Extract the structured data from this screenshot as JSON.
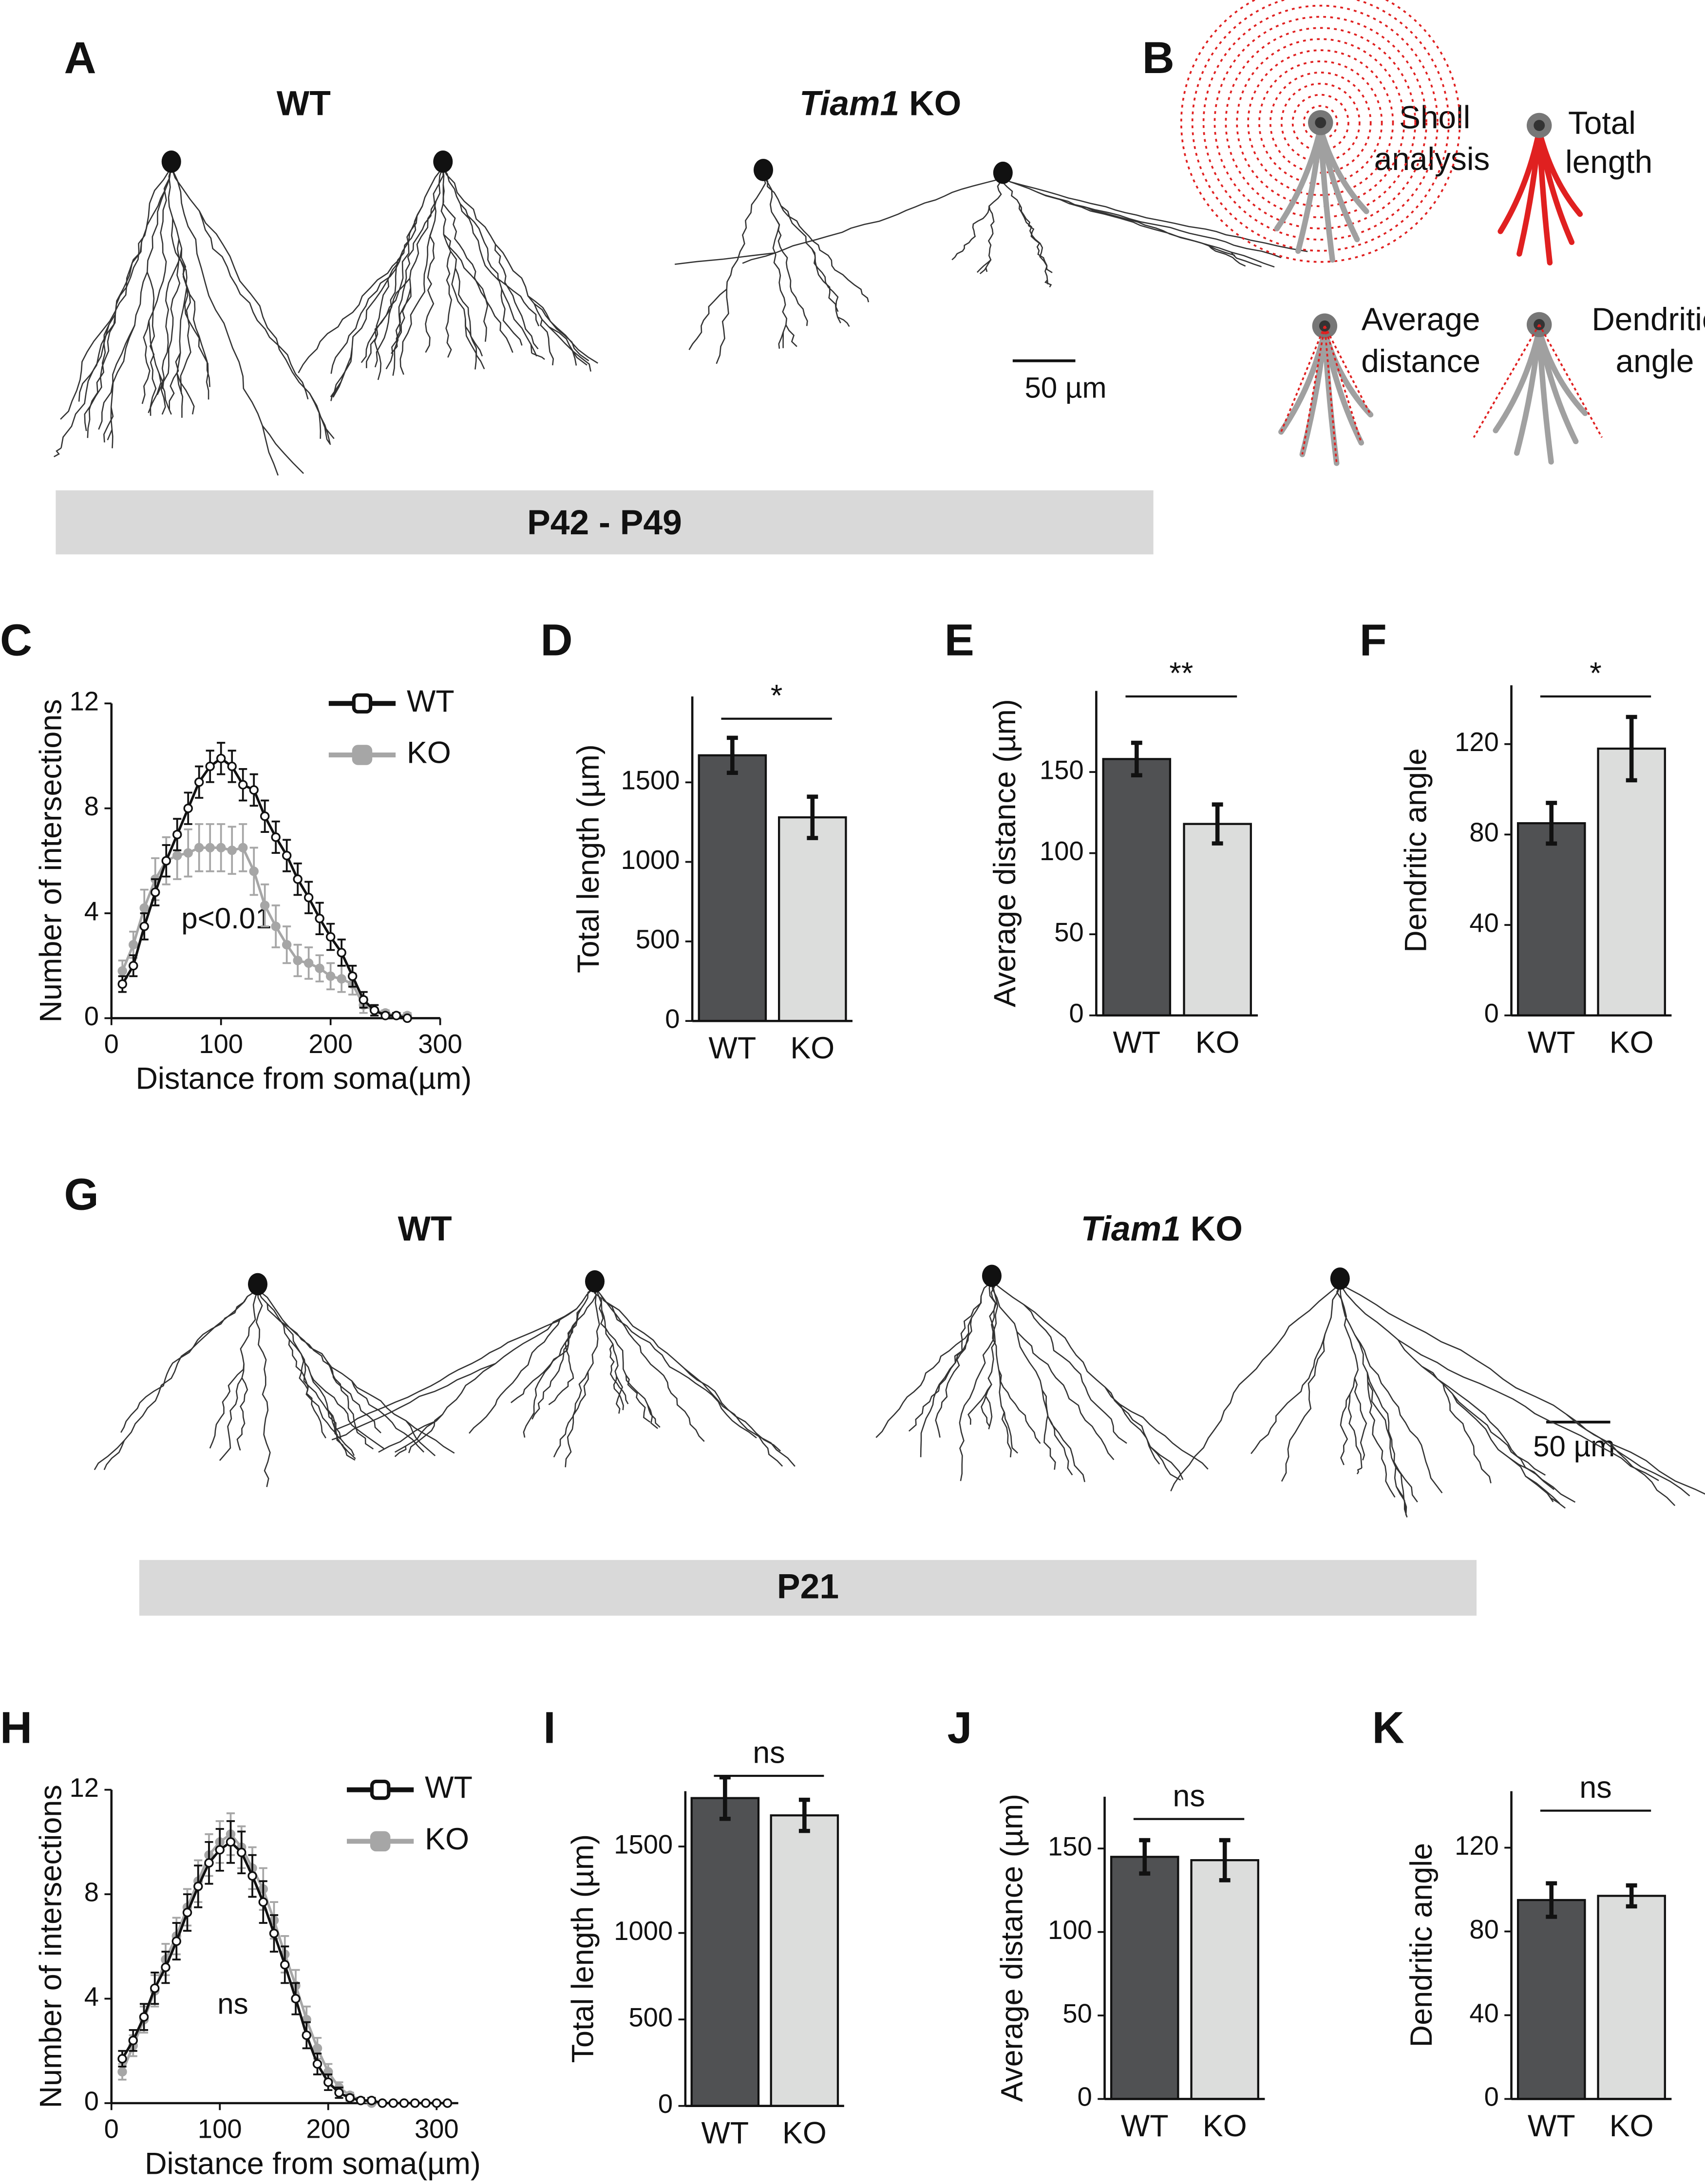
{
  "figure": {
    "panel_labels": [
      "A",
      "B",
      "G"
    ],
    "top": {
      "wt": "WT",
      "ko_gene": "Tiam1",
      "ko_suffix": " KO",
      "age": "P42 - P49",
      "scale": "50 µm"
    },
    "bottom": {
      "wt": "WT",
      "ko_gene": "Tiam1",
      "ko_suffix": " KO",
      "age": "P21",
      "scale": "50 µm"
    },
    "schematic": [
      "Sholl",
      "analysis",
      "Total",
      "length",
      "Average",
      "distance",
      "Dendritic",
      "angle"
    ]
  },
  "chart_data": [
    {
      "type": "line",
      "panel": "C",
      "xlabel": "Distance from soma(µm)",
      "ylabel": "Number of intersections",
      "annotation": "p<0.01",
      "x": [
        10,
        20,
        30,
        40,
        50,
        60,
        70,
        80,
        90,
        100,
        110,
        120,
        130,
        140,
        150,
        160,
        170,
        180,
        190,
        200,
        210,
        220,
        230,
        240,
        250,
        260,
        270
      ],
      "series": [
        {
          "name": "WT",
          "color": "#111111",
          "marker": "open",
          "values": [
            1.3,
            2.0,
            3.5,
            4.8,
            6.0,
            7.0,
            8.0,
            9.0,
            9.6,
            9.9,
            9.6,
            8.9,
            8.7,
            7.7,
            6.9,
            6.2,
            5.3,
            4.6,
            3.8,
            3.1,
            2.5,
            1.6,
            0.7,
            0.3,
            0.1,
            0.1,
            0
          ],
          "errors": [
            0.3,
            0.4,
            0.5,
            0.5,
            0.6,
            0.6,
            0.6,
            0.6,
            0.6,
            0.6,
            0.6,
            0.6,
            0.6,
            0.6,
            0.6,
            0.6,
            0.6,
            0.6,
            0.6,
            0.5,
            0.5,
            0.4,
            0.3,
            0.2,
            0.1,
            0.1,
            0
          ]
        },
        {
          "name": "KO",
          "color": "#a6a6a6",
          "marker": "filled",
          "values": [
            1.8,
            2.8,
            4.2,
            5.3,
            6.0,
            6.2,
            6.3,
            6.5,
            6.5,
            6.5,
            6.4,
            6.5,
            5.6,
            4.3,
            3.5,
            2.8,
            2.2,
            2.1,
            1.9,
            1.6,
            1.5,
            1.3,
            0.5,
            0.3,
            0.2,
            0.1,
            0.1
          ],
          "errors": [
            0.4,
            0.5,
            0.7,
            0.8,
            0.9,
            0.9,
            0.9,
            0.9,
            0.9,
            0.9,
            0.9,
            0.9,
            0.9,
            0.8,
            0.8,
            0.7,
            0.6,
            0.6,
            0.5,
            0.5,
            0.5,
            0.4,
            0.3,
            0.2,
            0.1,
            0.1,
            0.1
          ]
        }
      ],
      "xlim": [
        0,
        300
      ],
      "xticks": [
        0,
        100,
        200,
        300
      ],
      "ylim": [
        0,
        12
      ],
      "yticks": [
        0,
        4,
        8,
        12
      ],
      "legend": "upper right"
    },
    {
      "type": "bar",
      "panel": "D",
      "ylabel": "Total length (µm)",
      "annotation": "*",
      "categories": [
        "WT",
        "KO"
      ],
      "values": [
        1670,
        1280
      ],
      "errors": [
        110,
        130
      ],
      "colors": [
        "#505153",
        "#dcdddc"
      ],
      "ylim": [
        0,
        2040
      ],
      "yticks": [
        0,
        500,
        1000,
        1500
      ]
    },
    {
      "type": "bar",
      "panel": "E",
      "ylabel": "Average distance (µm)",
      "annotation": "**",
      "categories": [
        "WT",
        "KO"
      ],
      "values": [
        158,
        118
      ],
      "errors": [
        10,
        12
      ],
      "colors": [
        "#505153",
        "#dcdddc"
      ],
      "ylim": [
        0,
        200
      ],
      "yticks": [
        0,
        50,
        100,
        150
      ]
    },
    {
      "type": "bar",
      "panel": "F",
      "ylabel": "Dendritic angle",
      "annotation": "*",
      "categories": [
        "WT",
        "KO"
      ],
      "values": [
        85,
        118
      ],
      "errors": [
        9,
        14
      ],
      "colors": [
        "#505153",
        "#dcdddc"
      ],
      "ylim": [
        0,
        146
      ],
      "yticks": [
        0,
        40,
        80,
        120
      ]
    },
    {
      "type": "line",
      "panel": "H",
      "xlabel": "Distance from soma(µm)",
      "ylabel": "Number of intersections",
      "annotation": "ns",
      "x": [
        10,
        20,
        30,
        40,
        50,
        60,
        70,
        80,
        90,
        100,
        110,
        120,
        130,
        140,
        150,
        160,
        170,
        180,
        190,
        200,
        210,
        220,
        230,
        240,
        250,
        260,
        270,
        280,
        290,
        300,
        310
      ],
      "series": [
        {
          "name": "WT",
          "color": "#111111",
          "marker": "open",
          "values": [
            1.7,
            2.4,
            3.3,
            4.4,
            5.2,
            6.2,
            7.3,
            8.3,
            9.2,
            9.7,
            10.0,
            9.6,
            8.7,
            7.7,
            6.5,
            5.3,
            4.0,
            2.6,
            1.5,
            0.8,
            0.4,
            0.2,
            0.1,
            0.1,
            0,
            0,
            0,
            0,
            0,
            0,
            0
          ],
          "errors": [
            0.3,
            0.4,
            0.5,
            0.6,
            0.6,
            0.7,
            0.7,
            0.8,
            0.8,
            0.8,
            0.8,
            0.8,
            0.8,
            0.8,
            0.7,
            0.7,
            0.6,
            0.5,
            0.4,
            0.3,
            0.2,
            0.1,
            0.1,
            0.1,
            0,
            0,
            0,
            0,
            0,
            0,
            0
          ]
        },
        {
          "name": "KO",
          "color": "#a6a6a6",
          "marker": "filled",
          "values": [
            1.2,
            2.2,
            3.2,
            4.3,
            5.5,
            6.4,
            7.5,
            8.5,
            9.5,
            10.0,
            10.3,
            9.8,
            9.0,
            8.2,
            7.0,
            5.7,
            4.5,
            3.2,
            2.1,
            1.2,
            0.6,
            0.3,
            0.1,
            0,
            0,
            0,
            0,
            0,
            0,
            0,
            0
          ],
          "errors": [
            0.3,
            0.4,
            0.5,
            0.6,
            0.6,
            0.7,
            0.7,
            0.8,
            0.8,
            0.8,
            0.8,
            0.8,
            0.8,
            0.8,
            0.7,
            0.7,
            0.6,
            0.5,
            0.4,
            0.3,
            0.2,
            0.1,
            0.1,
            0,
            0,
            0,
            0,
            0,
            0,
            0,
            0
          ]
        }
      ],
      "xlim": [
        0,
        320
      ],
      "xticks": [
        0,
        100,
        200,
        300
      ],
      "ylim": [
        0,
        12
      ],
      "yticks": [
        0,
        4,
        8,
        12
      ],
      "legend": "upper right"
    },
    {
      "type": "bar",
      "panel": "I",
      "ylabel": "Total length (µm)",
      "annotation": "ns",
      "categories": [
        "WT",
        "KO"
      ],
      "values": [
        1780,
        1680
      ],
      "errors": [
        120,
        90
      ],
      "colors": [
        "#505153",
        "#dcdddc"
      ],
      "ylim": [
        0,
        1820
      ],
      "yticks": [
        0,
        500,
        1000,
        1500
      ]
    },
    {
      "type": "bar",
      "panel": "J",
      "ylabel": "Average distance (µm)",
      "annotation": "ns",
      "categories": [
        "WT",
        "KO"
      ],
      "values": [
        145,
        143
      ],
      "errors": [
        10,
        12
      ],
      "colors": [
        "#505153",
        "#dcdddc"
      ],
      "ylim": [
        0,
        181
      ],
      "yticks": [
        0,
        50,
        100,
        150
      ]
    },
    {
      "type": "bar",
      "panel": "K",
      "ylabel": "Dendritic angle",
      "annotation": "ns",
      "categories": [
        "WT",
        "KO"
      ],
      "values": [
        95,
        97
      ],
      "errors": [
        8,
        5
      ],
      "colors": [
        "#505153",
        "#dcdddc"
      ],
      "ylim": [
        0,
        147
      ],
      "yticks": [
        0,
        40,
        80,
        120
      ]
    }
  ]
}
